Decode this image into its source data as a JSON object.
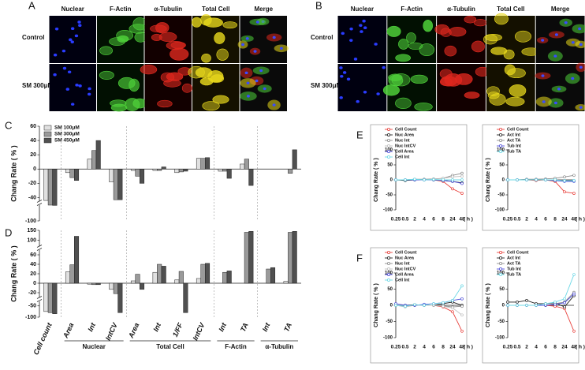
{
  "figure": {
    "panel_labels": [
      "A",
      "B",
      "C",
      "D",
      "E",
      "F"
    ],
    "image_panels": [
      {
        "columns": [
          "Nuclear",
          "F-Actin",
          "α-Tubulin",
          "Total Cell",
          "Merge"
        ],
        "rows": [
          "Control",
          "SM 300μM"
        ]
      },
      {
        "columns": [
          "Nuclear",
          "F-Actin",
          "α-Tubulin",
          "Total Cell",
          "Merge"
        ],
        "rows": [
          "Control",
          "SM 300μM"
        ]
      }
    ],
    "group_labels": [
      "Nuclear",
      "Total Cell",
      "F-Actin",
      "α-Tubulin"
    ]
  },
  "chart_data": [
    {
      "type": "bar",
      "ylabel": "Chang Rate ( % )",
      "legend": "upper left",
      "ylim": [
        -100,
        60
      ],
      "ybreaks": [
        -45
      ],
      "yticks": [
        -100,
        -40,
        -20,
        0,
        20,
        40,
        60
      ],
      "series": [
        {
          "name": "SM 100μM",
          "color": "#e0e0e0",
          "values": [
            -44,
            -5,
            14,
            -18,
            -2,
            -2,
            -5,
            15,
            -3,
            7,
            0,
            0
          ]
        },
        {
          "name": "SM 300μM",
          "color": "#9a9a9a",
          "values": [
            -45,
            -12,
            26,
            -43,
            -10,
            -2,
            -4,
            15,
            -3,
            14,
            0,
            -6
          ]
        },
        {
          "name": "SM 450μM",
          "color": "#505050",
          "values": [
            -46,
            -16,
            40,
            -43,
            -20,
            3,
            -3,
            16,
            -13,
            -23,
            0,
            27
          ]
        }
      ]
    },
    {
      "type": "bar",
      "ylabel": "Chang Rate ( % )",
      "categories": [
        "Cell count",
        "Area",
        "Int",
        "IntCV",
        "Area",
        "Int",
        "1/FF",
        "IntCV",
        "Int",
        "TA",
        "Int",
        "TA"
      ],
      "ylim": [
        -100,
        150
      ],
      "ybreaks": [
        -30,
        70
      ],
      "yticks": [
        -100,
        -50,
        -20,
        0,
        20,
        40,
        60,
        100,
        150
      ],
      "series": [
        {
          "color": "#e0e0e0",
          "values": [
            -75,
            24,
            -2,
            -13,
            5,
            23,
            7,
            10,
            0,
            0,
            0,
            4
          ]
        },
        {
          "color": "#9a9a9a",
          "values": [
            -80,
            39,
            -3,
            -22,
            19,
            40,
            25,
            40,
            23,
            140,
            30,
            140
          ]
        },
        {
          "color": "#505050",
          "values": [
            -85,
            120,
            -3,
            -80,
            -13,
            36,
            -80,
            42,
            26,
            145,
            33,
            145
          ]
        }
      ]
    },
    {
      "type": "line",
      "ylabel": "Chang Rate ( % )",
      "xlabel": "( h )",
      "legend": "upper left",
      "categories": [
        "0.25",
        "0.5",
        "2",
        "4",
        "6",
        "8",
        "24",
        "48"
      ],
      "ylim": [
        -100,
        100
      ],
      "yticks": [
        -100,
        -50,
        0,
        50,
        100
      ],
      "series": [
        {
          "name": "Cell Count",
          "color": "#e8413c",
          "values": [
            0,
            0,
            0,
            0,
            0,
            -5,
            -30,
            -45
          ]
        },
        {
          "name": "Nuc Area",
          "color": "#222222",
          "values": [
            0,
            -2,
            0,
            0,
            0,
            -2,
            -5,
            -10
          ]
        },
        {
          "name": "Nuc Int",
          "color": "#8c8c8c",
          "values": [
            0,
            0,
            2,
            2,
            3,
            5,
            15,
            22
          ]
        },
        {
          "name": "Nuc IntCV",
          "color": "#bdbdbd",
          "values": [
            0,
            0,
            0,
            0,
            2,
            5,
            10,
            12
          ]
        },
        {
          "name": "Cell Area",
          "color": "#4a4ad8",
          "values": [
            0,
            0,
            0,
            0,
            0,
            -2,
            -5,
            -12
          ]
        },
        {
          "name": "Cell Int",
          "color": "#6cd8e6",
          "values": [
            0,
            0,
            2,
            0,
            1,
            0,
            0,
            0
          ]
        }
      ]
    },
    {
      "type": "line",
      "ylabel": "Chang Rate ( % )",
      "xlabel": "( h )",
      "legend": "upper left",
      "categories": [
        "0.25",
        "0.5",
        "2",
        "4",
        "6",
        "8",
        "24",
        "48"
      ],
      "ylim": [
        -100,
        100
      ],
      "yticks": [
        -100,
        -50,
        0,
        50,
        100
      ],
      "series": [
        {
          "name": "Cell Count",
          "color": "#e8413c",
          "values": [
            0,
            0,
            0,
            -2,
            0,
            -5,
            -40,
            -45
          ]
        },
        {
          "name": "Act Int",
          "color": "#222222",
          "values": [
            0,
            0,
            0,
            0,
            0,
            -2,
            -3,
            -3
          ]
        },
        {
          "name": "Act TA",
          "color": "#8c8c8c",
          "values": [
            0,
            0,
            2,
            2,
            3,
            5,
            10,
            15
          ]
        },
        {
          "name": "Tub Int",
          "color": "#4a4ad8",
          "values": [
            0,
            0,
            0,
            0,
            0,
            -2,
            -5,
            -5
          ]
        },
        {
          "name": "Tub TA",
          "color": "#6cd8e6",
          "values": [
            0,
            0,
            0,
            0,
            0,
            0,
            -3,
            -2
          ]
        }
      ]
    },
    {
      "type": "line",
      "ylabel": "Chang Rate ( % )",
      "xlabel": "( h )",
      "legend": "upper left",
      "categories": [
        "0.25",
        "0.5",
        "2",
        "4",
        "6",
        "8",
        "24",
        "48"
      ],
      "ylim": [
        -100,
        100
      ],
      "yticks": [
        -100,
        -50,
        0,
        50,
        100
      ],
      "series": [
        {
          "name": "Cell Count",
          "color": "#e8413c",
          "values": [
            0,
            0,
            0,
            0,
            0,
            -5,
            -20,
            -80
          ]
        },
        {
          "name": "Nuc Area",
          "color": "#222222",
          "values": [
            0,
            0,
            2,
            0,
            0,
            5,
            10,
            0
          ]
        },
        {
          "name": "Nuc Int",
          "color": "#8c8c8c",
          "values": [
            0,
            0,
            0,
            0,
            0,
            -2,
            -5,
            -3
          ]
        },
        {
          "name": "Nuc IntCV",
          "color": "#bdbdbd",
          "values": [
            0,
            -5,
            0,
            0,
            0,
            -3,
            -8,
            -30
          ]
        },
        {
          "name": "Cell Area",
          "color": "#4a4ad8",
          "values": [
            5,
            0,
            0,
            3,
            5,
            8,
            15,
            20
          ]
        },
        {
          "name": "Cell Int",
          "color": "#6cd8e6",
          "values": [
            0,
            -3,
            2,
            0,
            5,
            8,
            15,
            60
          ]
        }
      ]
    },
    {
      "type": "line",
      "ylabel": "Chang Rate ( % )",
      "xlabel": "( h )",
      "legend": "upper left",
      "categories": [
        "0.25",
        "0.5",
        "2",
        "4",
        "6",
        "8",
        "24",
        "48"
      ],
      "ylim": [
        -100,
        100
      ],
      "yticks": [
        -100,
        -50,
        0,
        50,
        100
      ],
      "series": [
        {
          "name": "Cell Count",
          "color": "#e8413c",
          "values": [
            0,
            0,
            0,
            0,
            0,
            -3,
            -10,
            -80
          ]
        },
        {
          "name": "Act Int",
          "color": "#222222",
          "values": [
            10,
            10,
            15,
            5,
            5,
            8,
            -5,
            30
          ]
        },
        {
          "name": "Act TA",
          "color": "#8c8c8c",
          "values": [
            0,
            0,
            0,
            0,
            0,
            5,
            10,
            40
          ]
        },
        {
          "name": "Tub Int",
          "color": "#4a4ad8",
          "values": [
            0,
            0,
            0,
            0,
            0,
            3,
            8,
            35
          ]
        },
        {
          "name": "Tub TA",
          "color": "#6cd8e6",
          "values": [
            0,
            0,
            0,
            0,
            5,
            10,
            20,
            95
          ]
        }
      ]
    }
  ]
}
